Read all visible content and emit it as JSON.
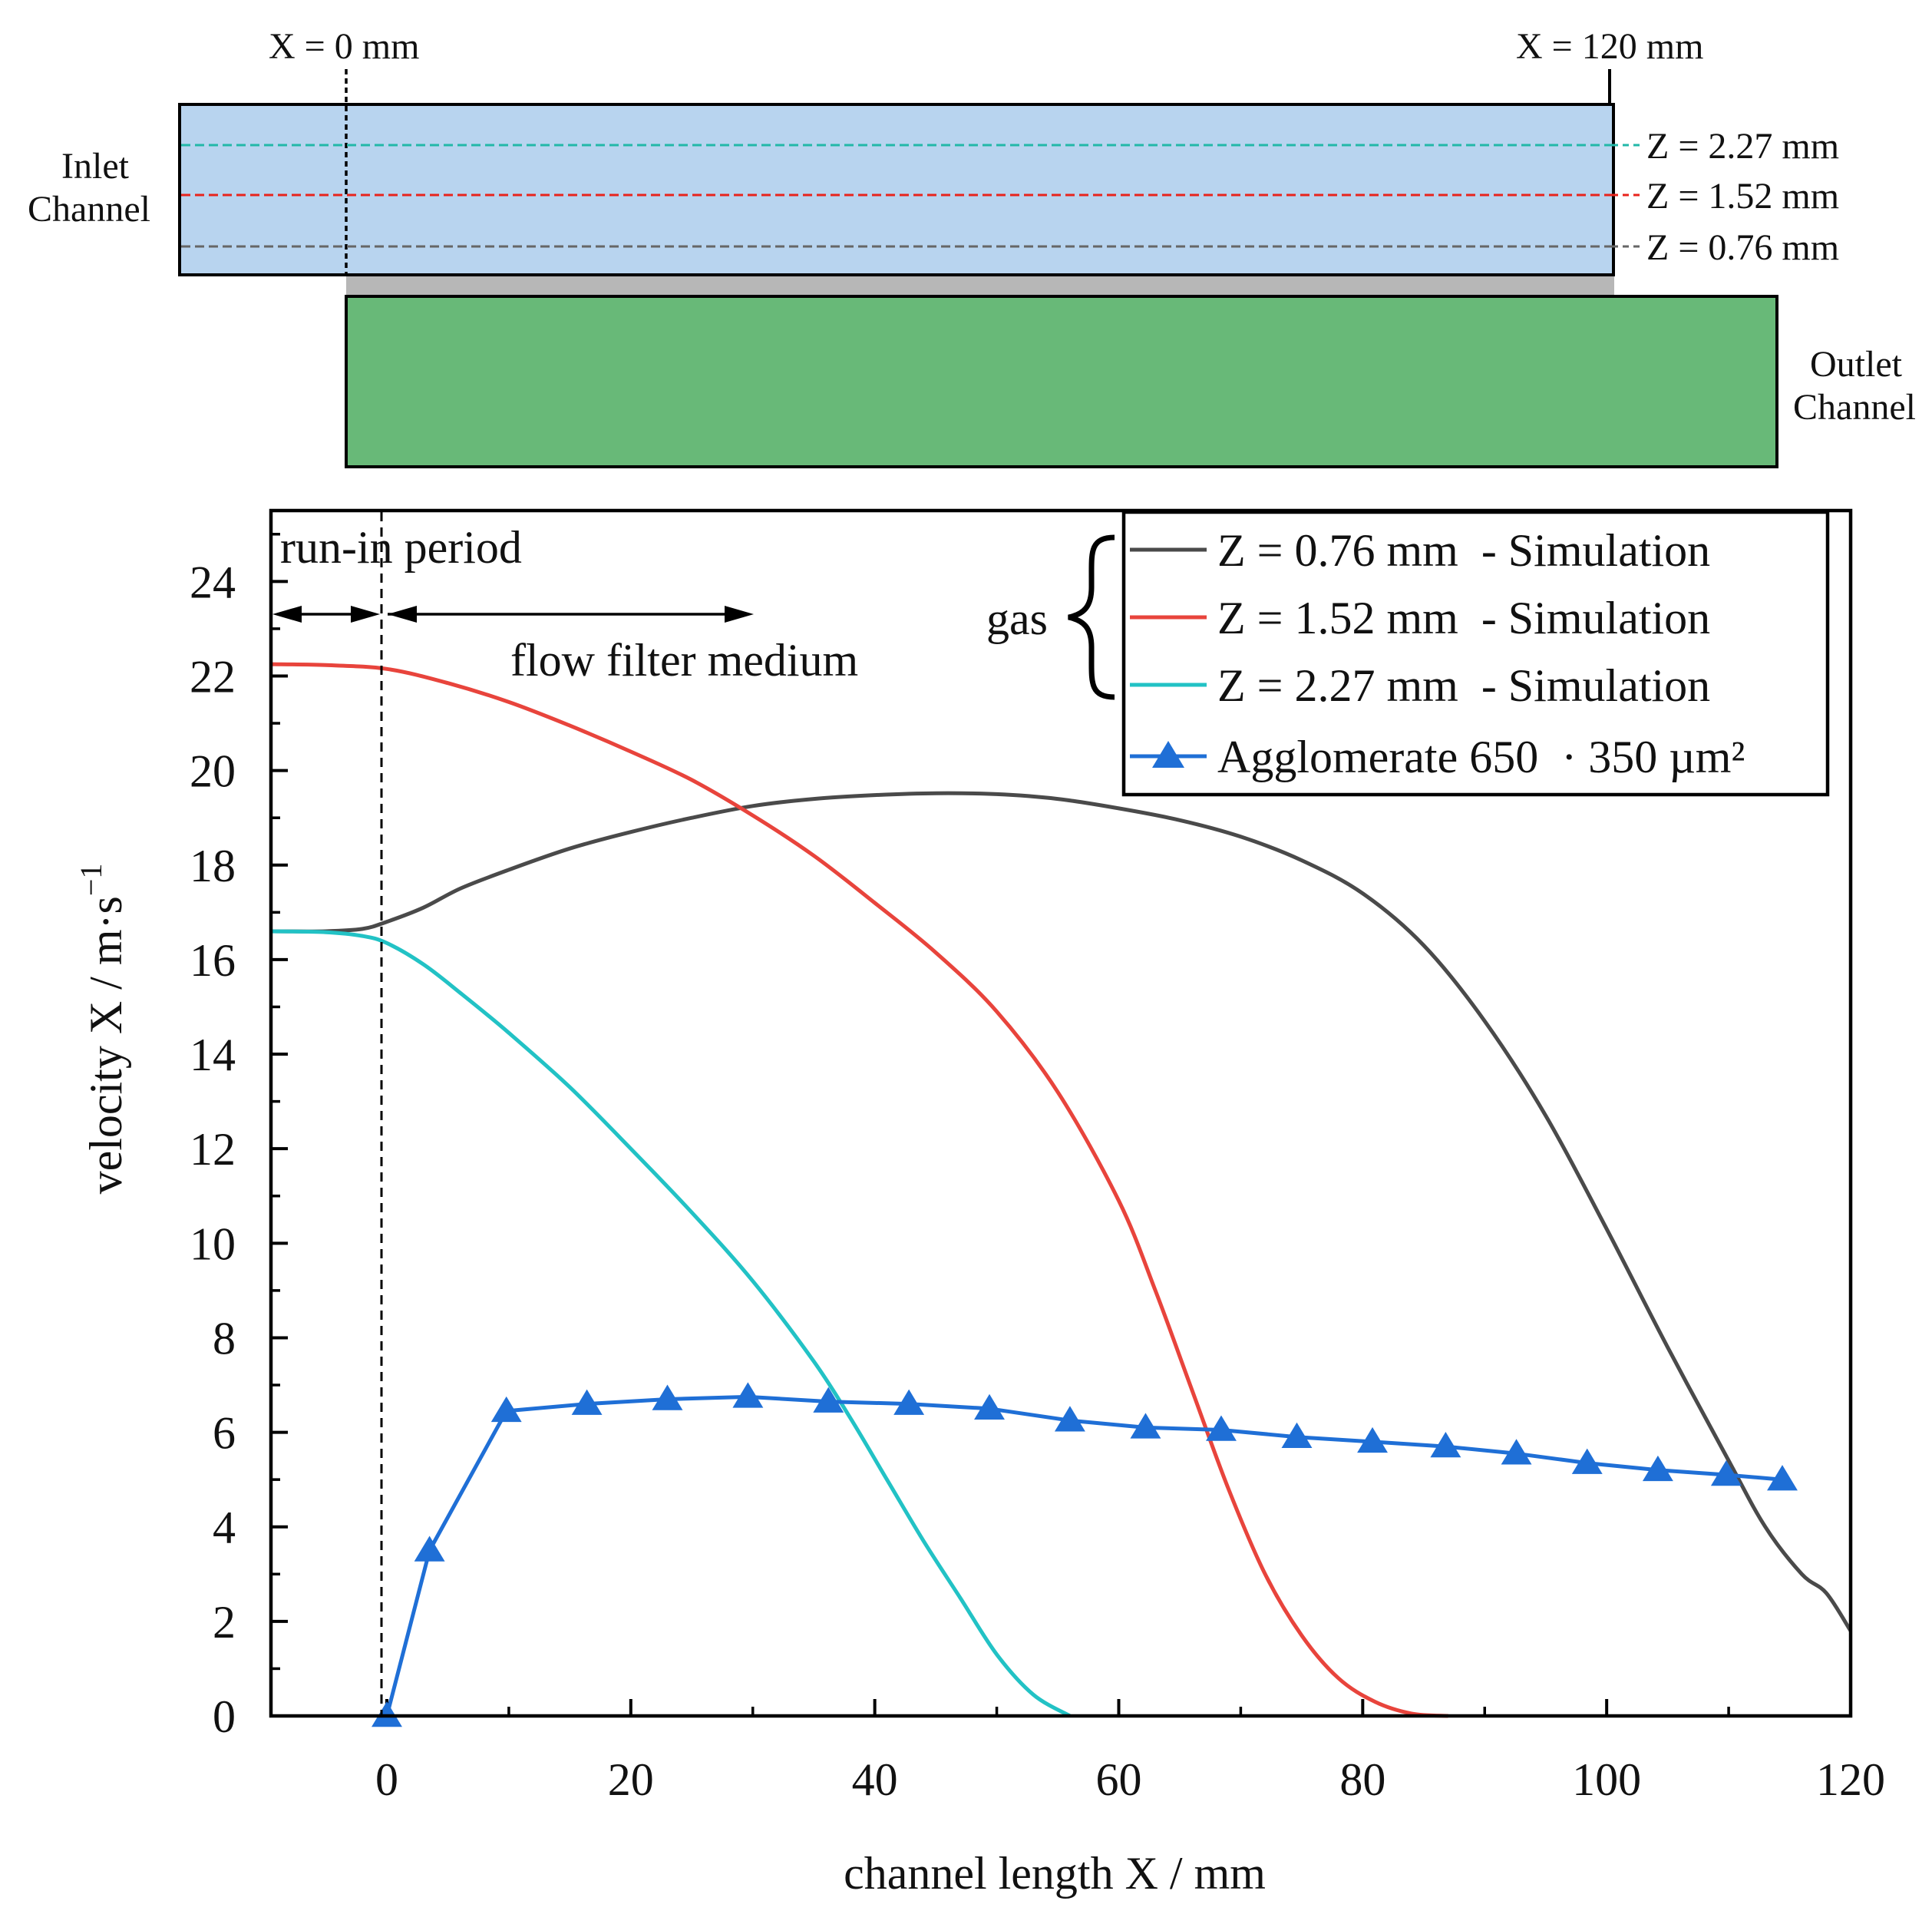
{
  "colors": {
    "sim_076": "#4a4a4a",
    "sim_152": "#e8443c",
    "sim_227": "#22c2c5",
    "agglomerate": "#1f6fd6",
    "inlet_fill": "#b8d4ef",
    "outlet_fill": "#68b978",
    "wall_fill": "#b7b7b7"
  },
  "schematic": {
    "x0_label": "X = 0 mm",
    "x120_label": "X = 120 mm",
    "inlet_label_line1": "Inlet",
    "inlet_label_line2": "Channel",
    "outlet_label_line1": "Outlet",
    "outlet_label_line2": "Channel",
    "z_lines": [
      {
        "label": "Z = 2.27 mm",
        "color": "#22b8a8"
      },
      {
        "label": "Z = 1.52 mm",
        "color": "#e8231c"
      },
      {
        "label": "Z = 0.76 mm",
        "color": "#666666"
      }
    ]
  },
  "annotations": {
    "run_in": "run-in period",
    "flow_filter": "flow filter medium",
    "gas": "gas"
  },
  "chart_data": {
    "type": "line",
    "title": "",
    "xlabel": "channel length X / mm",
    "ylabel_main": "velocity X / m·s",
    "ylabel_exp": "−1",
    "xlim": [
      -9.5,
      120
    ],
    "ylim": [
      0,
      25.5
    ],
    "xticks": [
      0,
      20,
      40,
      60,
      80,
      100,
      120
    ],
    "yticks": [
      0,
      2,
      4,
      6,
      8,
      10,
      12,
      14,
      16,
      18,
      20,
      22,
      24
    ],
    "legend_position": "top-right",
    "series": [
      {
        "name": "Z = 0.76 mm  - Simulation",
        "color_key": "sim_076",
        "marker": "none",
        "x": [
          -9.5,
          -5,
          -2,
          0,
          3,
          6,
          10,
          15,
          20,
          25,
          30,
          35,
          40,
          45,
          50,
          55,
          60,
          65,
          70,
          75,
          80,
          85,
          90,
          95,
          100,
          105,
          110,
          113,
          116,
          118,
          120
        ],
        "y": [
          16.6,
          16.6,
          16.65,
          16.8,
          17.1,
          17.5,
          17.9,
          18.35,
          18.7,
          19.0,
          19.25,
          19.4,
          19.48,
          19.52,
          19.5,
          19.4,
          19.2,
          18.95,
          18.6,
          18.1,
          17.4,
          16.3,
          14.7,
          12.7,
          10.3,
          7.8,
          5.4,
          4.0,
          3.0,
          2.6,
          1.8
        ]
      },
      {
        "name": "Z = 1.52 mm  - Simulation",
        "color_key": "sim_152",
        "marker": "none",
        "x": [
          -9.5,
          -5,
          0,
          5,
          10,
          15,
          20,
          25,
          30,
          35,
          40,
          45,
          50,
          55,
          60,
          63,
          66,
          69,
          72,
          75,
          78,
          81,
          84,
          87
        ],
        "y": [
          22.25,
          22.23,
          22.15,
          21.85,
          21.45,
          20.95,
          20.4,
          19.8,
          19.05,
          18.2,
          17.2,
          16.15,
          14.9,
          13.2,
          10.9,
          9.0,
          6.9,
          4.8,
          3.0,
          1.7,
          0.8,
          0.3,
          0.05,
          0.0
        ]
      },
      {
        "name": "Z = 2.27 mm  - Simulation",
        "color_key": "sim_227",
        "marker": "none",
        "x": [
          -9.5,
          -5,
          -2,
          0,
          3,
          6,
          10,
          15,
          20,
          25,
          30,
          35,
          38,
          41,
          44,
          47,
          50,
          53,
          56
        ],
        "y": [
          16.6,
          16.58,
          16.5,
          16.35,
          15.9,
          15.3,
          14.45,
          13.3,
          12.0,
          10.65,
          9.2,
          7.5,
          6.3,
          5.0,
          3.7,
          2.5,
          1.3,
          0.45,
          0.0
        ]
      },
      {
        "name": "Agglomerate 650  · 350 µm²",
        "color_key": "agglomerate",
        "marker": "triangle",
        "x": [
          0,
          3.5,
          9.8,
          16.4,
          23,
          29.6,
          36.2,
          42.8,
          49.4,
          56,
          62.2,
          68.4,
          74.6,
          80.8,
          86.8,
          92.6,
          98.4,
          104.2,
          109.8,
          114.4
        ],
        "y": [
          0.0,
          3.5,
          6.45,
          6.6,
          6.7,
          6.75,
          6.65,
          6.6,
          6.5,
          6.25,
          6.1,
          6.05,
          5.9,
          5.8,
          5.7,
          5.55,
          5.35,
          5.2,
          5.1,
          5.0
        ]
      }
    ]
  }
}
